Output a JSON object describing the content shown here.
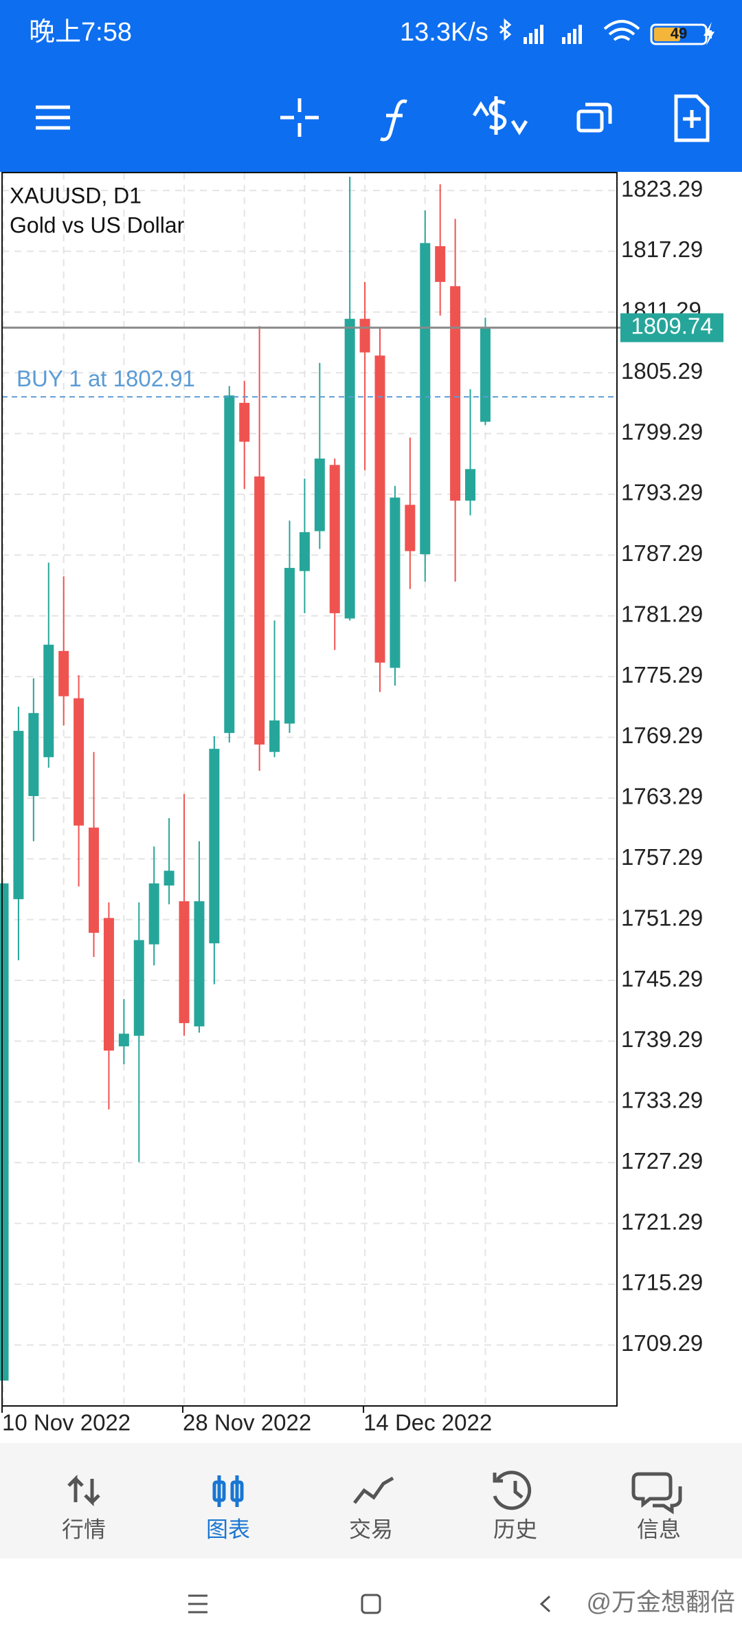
{
  "status_bar": {
    "time": "晚上7:58",
    "speed": "13.3K/s",
    "battery": "49"
  },
  "chart_data": {
    "type": "candlestick",
    "symbol": "XAUUSD, D1",
    "title": "Gold vs US Dollar",
    "categories": [
      "10 Nov 2022",
      null,
      null,
      null,
      null,
      null,
      null,
      null,
      null,
      null,
      null,
      null,
      "28 Nov 2022",
      null,
      null,
      null,
      null,
      null,
      null,
      null,
      null,
      null,
      null,
      null,
      "14 Dec 2022",
      null,
      null,
      null,
      null,
      null,
      null,
      null,
      null
    ],
    "open": [
      1705.77,
      1753.31,
      1763.49,
      1767.33,
      1777.82,
      1773.15,
      1760.38,
      1751.45,
      1738.78,
      1739.82,
      1748.85,
      1754.66,
      1753.11,
      1740.75,
      1748.95,
      1769.72,
      1802.32,
      1795.05,
      1767.85,
      1770.65,
      1785.71,
      1789.65,
      1796.19,
      1781.03,
      1810.62,
      1806.99,
      1776.15,
      1792.25,
      1787.37,
      1817.79,
      1813.84,
      1792.66,
      1800.45
    ],
    "high": [
      1754.87,
      1772.32,
      1775.12,
      1786.54,
      1785.19,
      1775.43,
      1767.85,
      1753.0,
      1743.45,
      1753.0,
      1758.51,
      1761.31,
      1763.7,
      1759.03,
      1769.41,
      1803.98,
      1804.5,
      1809.9,
      1780.83,
      1790.69,
      1794.84,
      1806.26,
      1796.82,
      1824.64,
      1814.26,
      1809.69,
      1794.12,
      1798.89,
      1821.32,
      1823.91,
      1820.49,
      1803.67,
      1810.73
    ],
    "low": [
      1705.77,
      1747.29,
      1759.03,
      1766.29,
      1770.45,
      1754.56,
      1747.6,
      1732.55,
      1737.01,
      1727.36,
      1746.77,
      1752.8,
      1739.82,
      1740.13,
      1744.91,
      1768.78,
      1793.81,
      1765.98,
      1767.33,
      1769.72,
      1781.55,
      1787.89,
      1777.92,
      1780.83,
      1795.67,
      1773.77,
      1774.39,
      1783.94,
      1784.67,
      1810.94,
      1784.67,
      1791.21,
      1800.14
    ],
    "close": [
      1754.87,
      1769.93,
      1771.69,
      1778.44,
      1773.35,
      1760.58,
      1749.99,
      1738.36,
      1740.03,
      1749.27,
      1754.87,
      1756.12,
      1741.07,
      1753.11,
      1768.16,
      1803.05,
      1798.48,
      1768.58,
      1770.96,
      1786.02,
      1789.55,
      1796.82,
      1781.55,
      1810.62,
      1807.3,
      1776.67,
      1792.97,
      1787.68,
      1818.1,
      1814.26,
      1792.66,
      1795.78,
      1809.74
    ],
    "up_color": "#26a69a",
    "down_color": "#ef5350",
    "ylim": [
      1703.27,
      1825.06
    ],
    "yticks": [
      1709.29,
      1715.29,
      1721.29,
      1727.29,
      1733.29,
      1739.29,
      1745.29,
      1751.29,
      1757.29,
      1763.29,
      1769.29,
      1775.29,
      1781.29,
      1787.29,
      1793.29,
      1799.29,
      1805.29,
      1811.29,
      1817.29,
      1823.29
    ],
    "grid": true,
    "current_price": 1809.74,
    "order_line": {
      "text": "BUY 1 at 1802.91",
      "value": 1802.91
    }
  },
  "bottom_nav": {
    "items": [
      "行情",
      "图表",
      "交易",
      "历史",
      "信息"
    ],
    "active": 1
  },
  "watermark": "@万金想翻倍"
}
